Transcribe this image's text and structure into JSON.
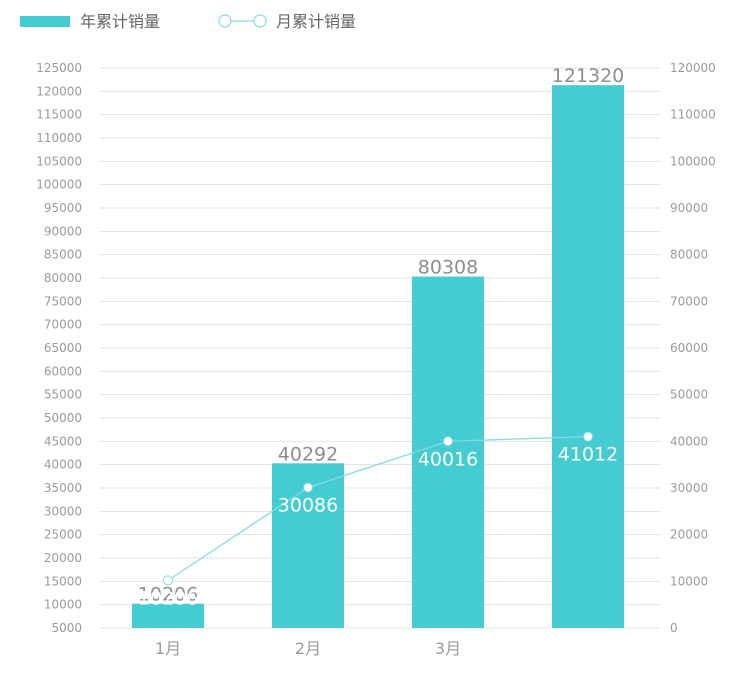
{
  "colors": {
    "bar": "#45ccd2",
    "line": "#7fdde3",
    "grid": "#e3e3e3",
    "tick": "#9a9a9a"
  },
  "legend": {
    "bar_label": "年累计销量",
    "line_label": "月累计销量"
  },
  "chart_data": {
    "type": "bar",
    "categories": [
      "1月",
      "2月",
      "3月",
      ""
    ],
    "series": [
      {
        "name": "年累计销量",
        "type": "bar",
        "axis": "left",
        "values": [
          10206,
          40292,
          80308,
          121320
        ]
      },
      {
        "name": "月累计销量",
        "type": "line",
        "axis": "right",
        "values": [
          10206,
          30086,
          40016,
          41012
        ]
      }
    ],
    "y_left": {
      "min": 5000,
      "max": 125000,
      "step": 5000
    },
    "y_right": {
      "min": 0,
      "max": 120000,
      "step": 10000
    },
    "legend_position": "top-left",
    "grid": true
  }
}
